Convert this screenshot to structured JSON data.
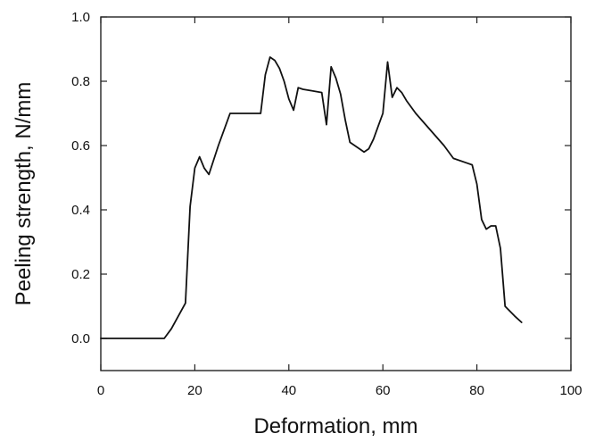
{
  "chart_data": {
    "type": "line",
    "title": "",
    "xlabel": "Deformation, mm",
    "ylabel": "Peeling strength, N/mm",
    "xlim": [
      0,
      100
    ],
    "ylim": [
      -0.1,
      1.0
    ],
    "x_ticks": [
      0,
      20,
      40,
      60,
      80,
      100
    ],
    "x_tick_labels": [
      "0",
      "20",
      "40",
      "60",
      "80",
      "100"
    ],
    "y_ticks": [
      0.0,
      0.2,
      0.4,
      0.6,
      0.8,
      1.0
    ],
    "y_tick_labels": [
      "0.0",
      "0.2",
      "0.4",
      "0.6",
      "0.8",
      "1.0"
    ],
    "grid": false,
    "legend": "none",
    "series": [
      {
        "x": [
          0,
          13.5,
          15,
          18,
          19,
          20,
          21,
          22,
          23,
          25,
          27.5,
          29,
          30,
          31,
          33,
          34,
          35,
          36,
          37,
          38,
          39,
          40,
          41,
          42,
          43,
          45,
          47,
          48,
          49,
          50,
          51,
          52,
          53,
          55,
          56,
          57,
          58,
          59,
          60,
          61,
          62,
          63,
          64,
          65,
          67,
          70,
          73,
          75,
          78,
          79,
          80,
          81,
          82,
          83,
          84,
          85,
          86,
          87,
          88,
          89.5
        ],
        "y": [
          0.0,
          0.0,
          0.03,
          0.11,
          0.41,
          0.53,
          0.565,
          0.53,
          0.51,
          0.6,
          0.7,
          0.7,
          0.7,
          0.7,
          0.7,
          0.7,
          0.82,
          0.875,
          0.865,
          0.84,
          0.8,
          0.745,
          0.71,
          0.78,
          0.775,
          0.77,
          0.765,
          0.665,
          0.845,
          0.81,
          0.76,
          0.68,
          0.61,
          0.59,
          0.58,
          0.59,
          0.62,
          0.66,
          0.7,
          0.86,
          0.75,
          0.78,
          0.765,
          0.74,
          0.7,
          0.65,
          0.6,
          0.56,
          0.545,
          0.54,
          0.48,
          0.37,
          0.34,
          0.35,
          0.35,
          0.28,
          0.1,
          0.085,
          0.07,
          0.05
        ]
      }
    ]
  }
}
